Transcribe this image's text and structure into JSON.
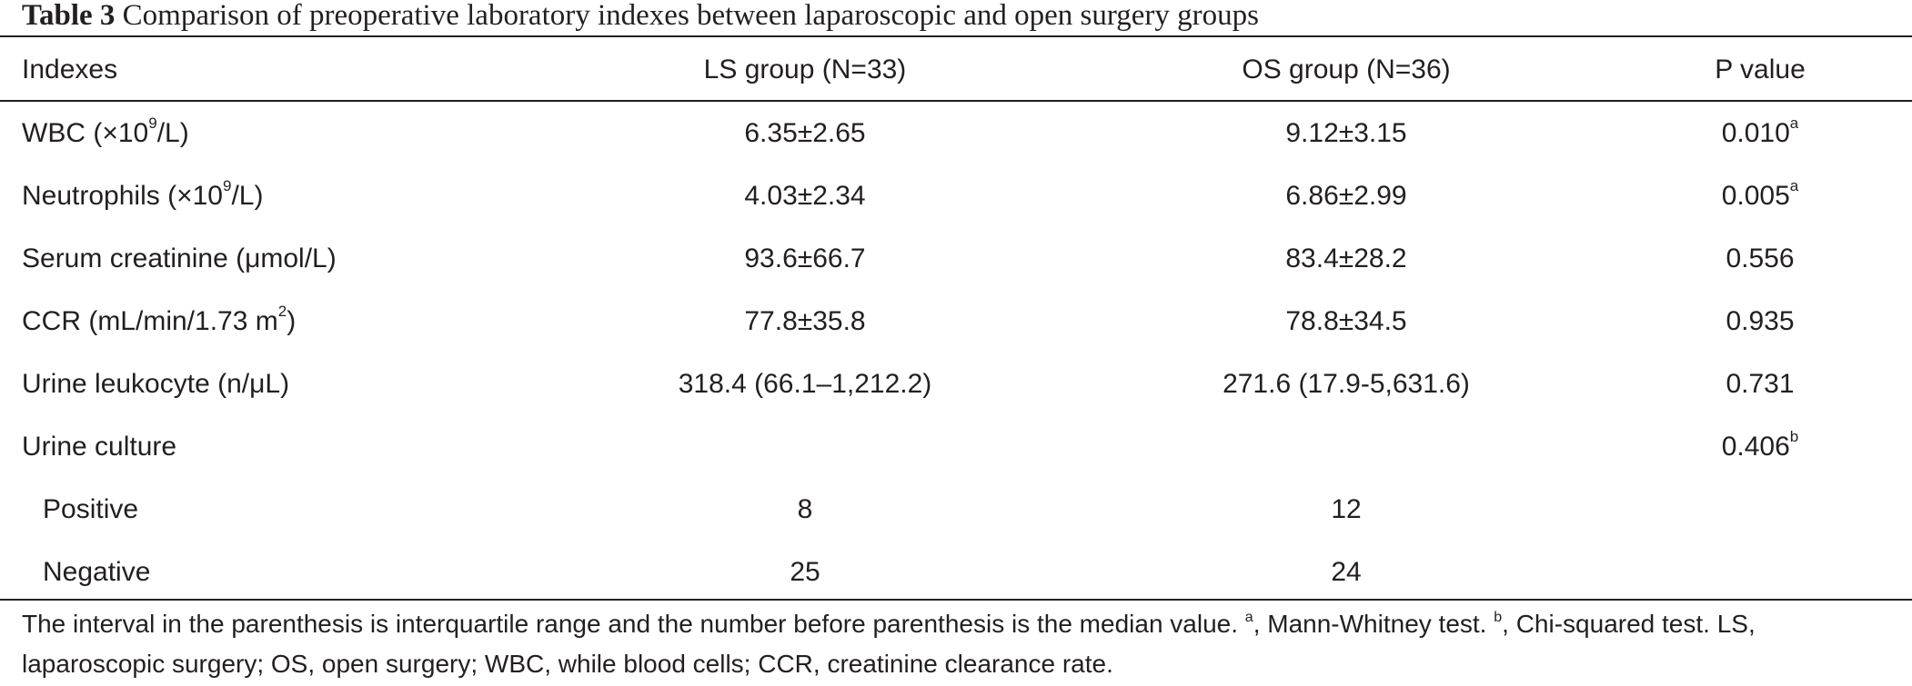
{
  "caption": {
    "label": "Table 3",
    "text": "Comparison of preoperative laboratory indexes between laparoscopic and open surgery groups"
  },
  "table": {
    "headers": {
      "indexes": "Indexes",
      "ls": "LS group (N=33)",
      "os": "OS group (N=36)",
      "p": "P value"
    },
    "rows": [
      {
        "label_main": "WBC (×10",
        "label_sup": "9",
        "label_tail": "/L)",
        "ls": "6.35±2.65",
        "os": "9.12±3.15",
        "p": "0.010",
        "p_sup": "a"
      },
      {
        "label_main": "Neutrophils (×10",
        "label_sup": "9",
        "label_tail": "/L)",
        "ls": "4.03±2.34",
        "os": "6.86±2.99",
        "p": "0.005",
        "p_sup": "a"
      },
      {
        "label_main": "Serum creatinine (μmol/L)",
        "ls": "93.6±66.7",
        "os": "83.4±28.2",
        "p": "0.556"
      },
      {
        "label_main": "CCR (mL/min/1.73 m",
        "label_sup": "2",
        "label_tail": ")",
        "ls": "77.8±35.8",
        "os": "78.8±34.5",
        "p": "0.935"
      },
      {
        "label_main": "Urine leukocyte (n/μL)",
        "ls": "318.4 (66.1–1,212.2)",
        "os": "271.6 (17.9-5,631.6)",
        "p": "0.731"
      },
      {
        "label_main": "Urine culture",
        "p": "0.406",
        "p_sup": "b"
      },
      {
        "label_main": "Positive",
        "ls": "8",
        "os": "12"
      },
      {
        "label_main": "Negative",
        "ls": "25",
        "os": "24"
      }
    ]
  },
  "footnote": {
    "part1": "The interval in the parenthesis is interquartile range and the number before parenthesis is the median value. ",
    "sup_a": "a",
    "part2": ", Mann-Whitney test. ",
    "sup_b": "b",
    "part3": ", Chi-squared test. LS, laparoscopic surgery; OS, open surgery; WBC, while blood cells; CCR, creatinine clearance rate."
  }
}
